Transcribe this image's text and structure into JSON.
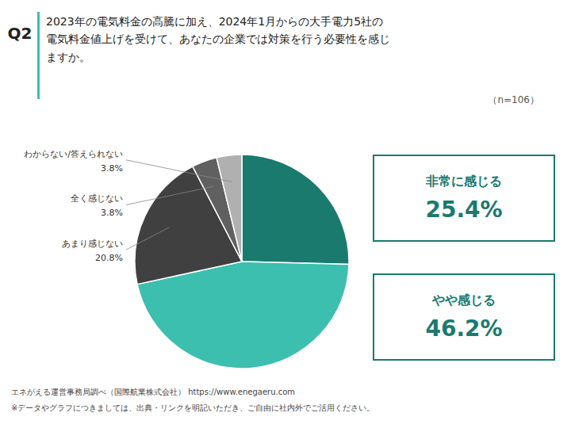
{
  "chart_data": {
    "type": "pie",
    "title": "2023年の電気料金の高騰に加え、2024年1月からの大手電力5社の\n電気料金値上げを受けて、あなたの企業では対策を行う必要性を感じ\nますか。",
    "subtitle": "（n=106）",
    "annotations": [
      "Q2",
      "エネがえる運営事務局調べ（国際航業株式会社）  https://www.enegaeru.com",
      "※データやグラフにつきましては、出典・リンクを明記いただき、ご自由に社内外でご活用ください。"
    ],
    "categories": [
      "非常に感じる",
      "やや感じる",
      "あまり感じない",
      "全く感じない",
      "わからない/答えられない"
    ],
    "values": [
      25.4,
      46.2,
      20.8,
      3.8,
      3.8
    ],
    "value_labels": [
      "25.4%",
      "46.2%",
      "20.8%",
      "3.8%",
      "3.8%"
    ],
    "colors": [
      "#1a7a6e",
      "#3cbfae",
      "#404040",
      "#606060",
      "#b0b0b0"
    ],
    "data_labels": true
  }
}
